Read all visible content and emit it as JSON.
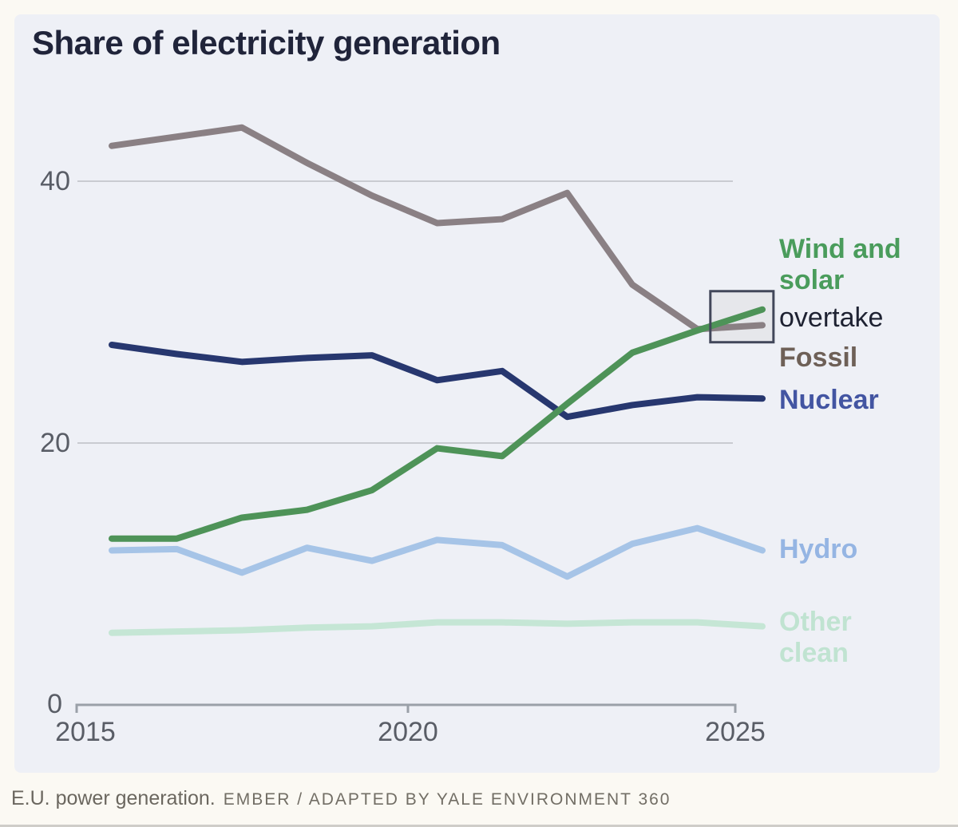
{
  "title": "Share of electricity generation",
  "axis": {
    "y_ticks": [
      "40",
      "20",
      "0"
    ],
    "x_ticks": [
      "2015",
      "2020",
      "2025"
    ]
  },
  "annotations": {
    "wind_solar": "Wind and solar",
    "overtake": "overtake",
    "fossil": "Fossil",
    "nuclear": "Nuclear",
    "hydro": "Hydro",
    "other_clean": "Other clean"
  },
  "caption": {
    "lead": "E.U. power generation.",
    "credit": "EMBER / ADAPTED BY YALE ENVIRONMENT 360"
  },
  "colors": {
    "page_background": "#fbf9f3",
    "card_background": "#eef0f6",
    "title_text": "#20243a",
    "axis": "#9aa0a8",
    "axis_label": "#595d66",
    "gridline": "#c9cbd1",
    "wind_solar_line": "#4e9358",
    "wind_solar_label": "#4a9c5c",
    "fossil_line": "#8a8084",
    "fossil_label": "#6e6057",
    "nuclear_line": "#27376f",
    "nuclear_label": "#4355a2",
    "hydro_line": "#a6c4e7",
    "hydro_label": "#95b5e3",
    "other_clean_line": "#c5e6d5",
    "other_clean_label": "#c0e3d1",
    "overtake_label": "#1e2232",
    "highlight_fill": "#e6e7eb",
    "highlight_border": "#42475a",
    "caption_text": "#6b675f"
  },
  "chart_data": {
    "type": "line",
    "title": "Share of electricity generation",
    "x": [
      2015,
      2016,
      2017,
      2018,
      2019,
      2020,
      2021,
      2022,
      2023,
      2024,
      2025
    ],
    "series": [
      {
        "name": "Wind and solar",
        "color": "#4e9358",
        "values": [
          12.7,
          12.7,
          14.3,
          14.9,
          16.4,
          19.6,
          19.0,
          23.0,
          26.9,
          28.6,
          30.2
        ]
      },
      {
        "name": "Fossil",
        "color": "#8a8084",
        "values": [
          42.7,
          43.4,
          44.1,
          41.4,
          38.9,
          36.8,
          37.1,
          39.1,
          32.1,
          28.7,
          29.0
        ]
      },
      {
        "name": "Nuclear",
        "color": "#27376f",
        "values": [
          27.5,
          26.8,
          26.2,
          26.5,
          26.7,
          24.8,
          25.5,
          22.0,
          22.9,
          23.5,
          23.4
        ]
      },
      {
        "name": "Hydro",
        "color": "#a6c4e7",
        "values": [
          11.8,
          11.9,
          10.1,
          12.0,
          11.0,
          12.6,
          12.2,
          9.8,
          12.3,
          13.5,
          11.8
        ]
      },
      {
        "name": "Other clean",
        "color": "#c5e6d5",
        "values": [
          5.5,
          5.6,
          5.7,
          5.9,
          6.0,
          6.3,
          6.3,
          6.2,
          6.3,
          6.3,
          6.0
        ]
      }
    ],
    "ylim": [
      0,
      47
    ],
    "yticks": [
      0,
      20,
      40
    ],
    "y_gridlines": [
      20,
      40
    ],
    "xticks": [
      2015,
      2020,
      2025
    ],
    "grid": "horizontal gridlines only",
    "legend_position": "direct labels at right edge of plot",
    "draw_order": [
      "Other clean",
      "Hydro",
      "Nuclear",
      "Fossil",
      "Wind and solar"
    ],
    "highlight_box": {
      "year_min": 2024.2,
      "year_max": 2025.17,
      "value_min": 27.7,
      "value_max": 31.6,
      "purpose": "marks wind and solar overtaking fossil"
    }
  }
}
